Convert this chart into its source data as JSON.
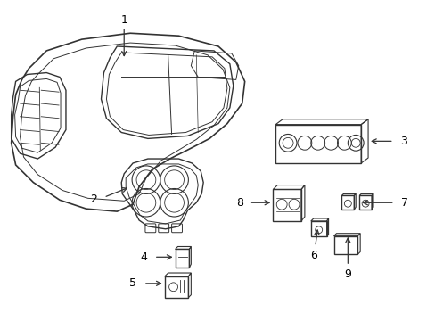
{
  "background_color": "#ffffff",
  "line_color": "#333333",
  "line_width": 1.0,
  "fig_width": 4.89,
  "fig_height": 3.6,
  "dpi": 100
}
